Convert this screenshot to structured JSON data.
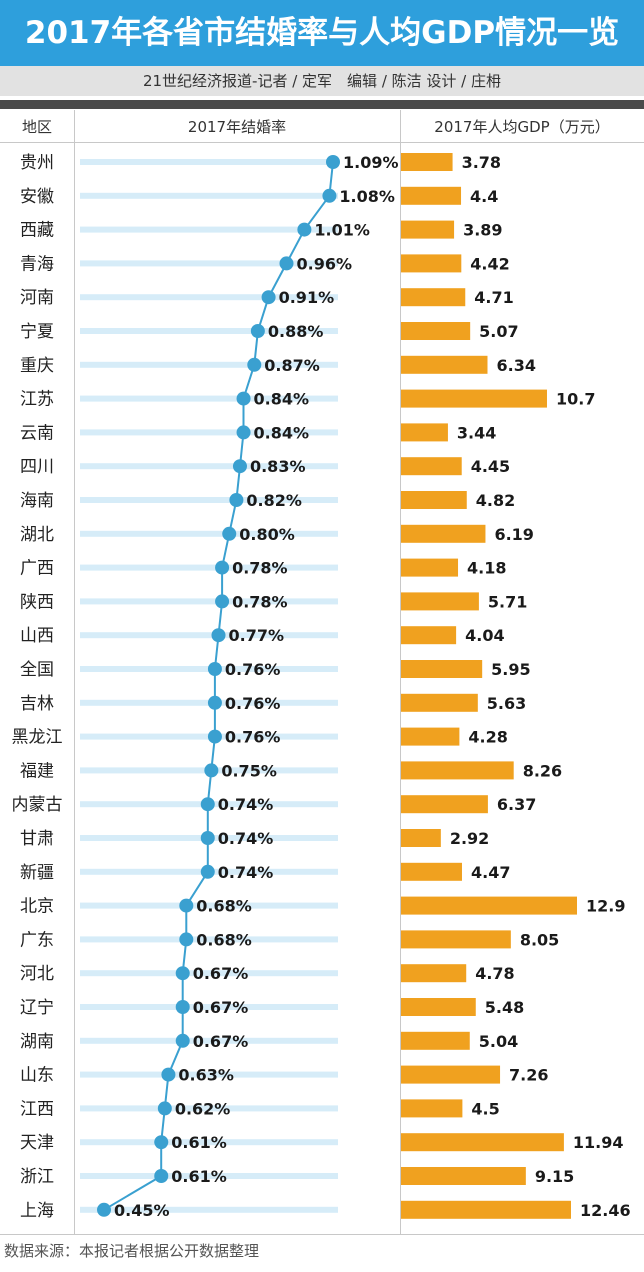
{
  "title": "2017年各省市结婚率与人均GDP情况一览",
  "credit": "21世纪经济报道-记者 / 定军　编辑 / 陈洁  设计 / 庄枏",
  "footer": "数据来源：本报记者根据公开数据整理",
  "colors": {
    "accent": "#2e9fdc",
    "bar": "#f0a11f",
    "line": "#3aa0d0",
    "guide": "#d6ecf8"
  },
  "chart_data": {
    "type": "table",
    "columns": [
      "地区",
      "2017年结婚率",
      "2017年人均GDP（万元）"
    ],
    "categories": [
      "贵州",
      "安徽",
      "西藏",
      "青海",
      "河南",
      "宁夏",
      "重庆",
      "江苏",
      "云南",
      "四川",
      "海南",
      "湖北",
      "广西",
      "陕西",
      "山西",
      "全国",
      "吉林",
      "黑龙江",
      "福建",
      "内蒙古",
      "甘肃",
      "新疆",
      "北京",
      "广东",
      "河北",
      "辽宁",
      "湖南",
      "山东",
      "江西",
      "天津",
      "浙江",
      "上海"
    ],
    "rate_labels": [
      "1.09%",
      "1.08%",
      "1.01%",
      "0.96%",
      "0.91%",
      "0.88%",
      "0.87%",
      "0.84%",
      "0.84%",
      "0.83%",
      "0.82%",
      "0.80%",
      "0.78%",
      "0.78%",
      "0.77%",
      "0.76%",
      "0.76%",
      "0.76%",
      "0.75%",
      "0.74%",
      "0.74%",
      "0.74%",
      "0.68%",
      "0.68%",
      "0.67%",
      "0.67%",
      "0.67%",
      "0.63%",
      "0.62%",
      "0.61%",
      "0.61%",
      "0.45%"
    ],
    "series": [
      {
        "type": "line",
        "values": [
          1.09,
          1.08,
          1.01,
          0.96,
          0.91,
          0.88,
          0.87,
          0.84,
          0.84,
          0.83,
          0.82,
          0.8,
          0.78,
          0.78,
          0.77,
          0.76,
          0.76,
          0.76,
          0.75,
          0.74,
          0.74,
          0.74,
          0.68,
          0.68,
          0.67,
          0.67,
          0.67,
          0.63,
          0.62,
          0.61,
          0.61,
          0.45
        ]
      },
      {
        "type": "bar",
        "values": [
          3.78,
          4.4,
          3.89,
          4.42,
          4.71,
          5.07,
          6.34,
          10.7,
          3.44,
          4.45,
          4.82,
          6.19,
          4.18,
          5.71,
          4.04,
          5.95,
          5.63,
          4.28,
          8.26,
          6.37,
          2.92,
          4.47,
          12.9,
          8.05,
          4.78,
          5.48,
          5.04,
          7.26,
          4.5,
          11.94,
          9.15,
          12.46
        ]
      }
    ],
    "gdp_labels": [
      "3.78",
      "4.4",
      "3.89",
      "4.42",
      "4.71",
      "5.07",
      "6.34",
      "10.7",
      "3.44",
      "4.45",
      "4.82",
      "6.19",
      "4.18",
      "5.71",
      "4.04",
      "5.95",
      "5.63",
      "4.28",
      "8.26",
      "6.37",
      "2.92",
      "4.47",
      "12.9",
      "8.05",
      "4.78",
      "5.48",
      "5.04",
      "7.26",
      "4.5",
      "11.94",
      "9.15",
      "12.46"
    ]
  }
}
